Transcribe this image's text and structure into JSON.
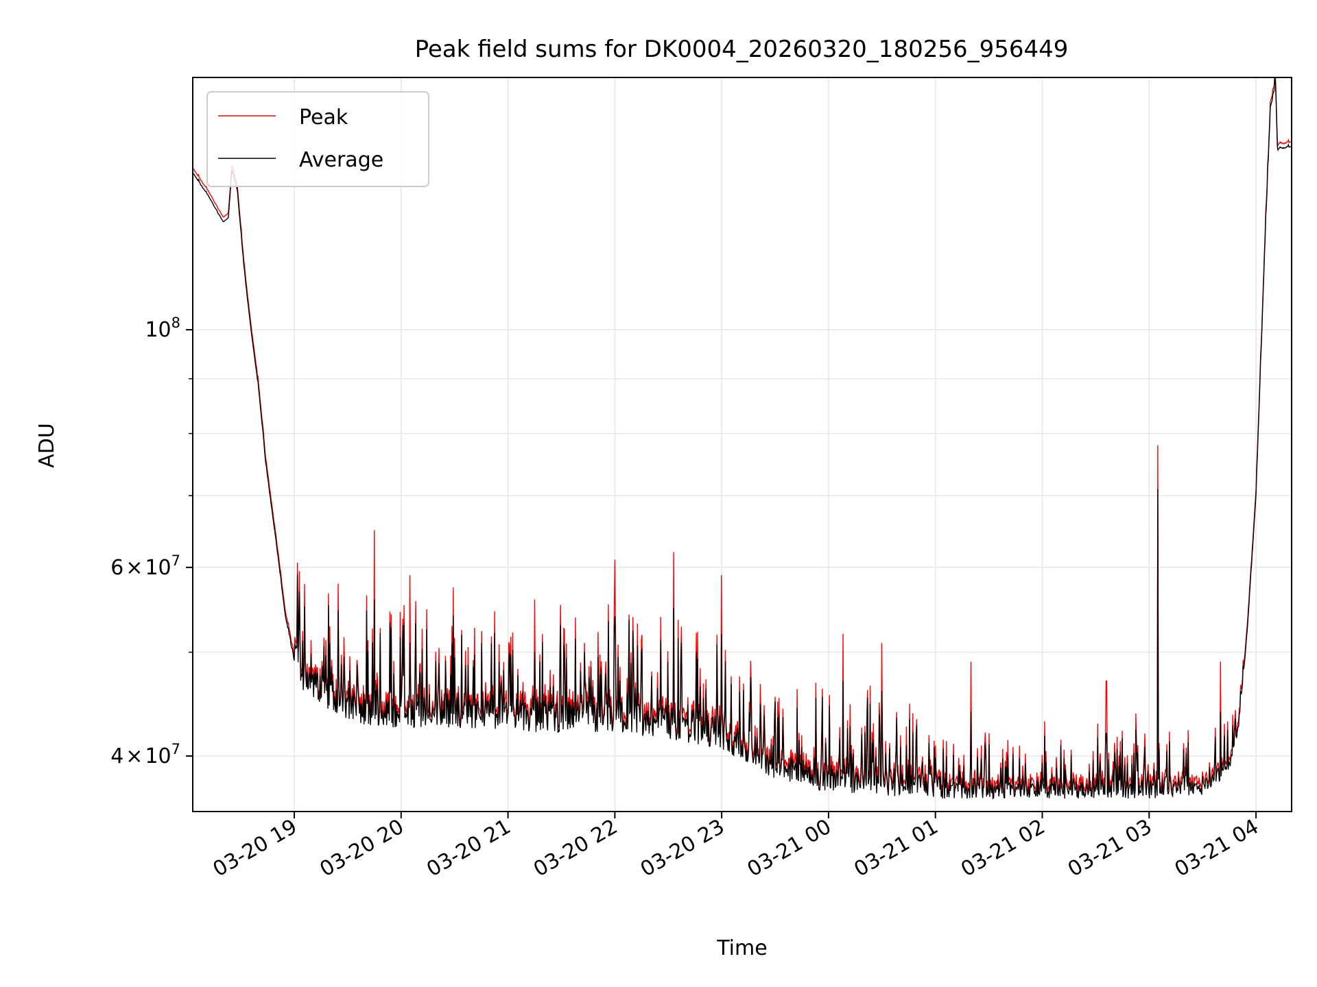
{
  "chart_data": {
    "type": "line",
    "title": "Peak field sums for DK0004_20260320_180256_956449",
    "xlabel": "Time",
    "ylabel": "ADU",
    "y_scale": "log",
    "x_range": [
      "03-20 18:03",
      "03-21 04:20"
    ],
    "ylim": [
      35500000,
      172000000
    ],
    "grid": true,
    "legend_position": "upper-left",
    "x_ticks": [
      "03-20 19",
      "03-20 20",
      "03-20 21",
      "03-20 22",
      "03-20 23",
      "03-21 00",
      "03-21 01",
      "03-21 02",
      "03-21 03",
      "03-21 04"
    ],
    "y_major_ticks": [
      {
        "value": 40000000,
        "mant": "4",
        "exp": "7"
      },
      {
        "value": 60000000,
        "mant": "6",
        "exp": "7"
      },
      {
        "value": 100000000,
        "mant": "",
        "exp": "8"
      }
    ],
    "y_minor_ticks": [
      50000000,
      70000000,
      80000000,
      90000000
    ],
    "series": [
      {
        "name": "Peak",
        "color": "#ff0000"
      },
      {
        "name": "Average",
        "color": "#000000"
      }
    ],
    "envelope": [
      [
        "03-20 18:03",
        140000000
      ],
      [
        "03-20 18:12",
        133000000
      ],
      [
        "03-20 18:20",
        126000000
      ],
      [
        "03-20 18:23",
        127000000
      ],
      [
        "03-20 18:25",
        141000000
      ],
      [
        "03-20 18:28",
        135000000
      ],
      [
        "03-20 18:32",
        113000000
      ],
      [
        "03-20 18:36",
        99000000
      ],
      [
        "03-20 18:40",
        88000000
      ],
      [
        "03-20 18:44",
        75000000
      ],
      [
        "03-20 18:50",
        63000000
      ],
      [
        "03-20 18:55",
        54000000
      ],
      [
        "03-20 19:00",
        49000000
      ],
      [
        "03-20 19:05",
        46000000
      ],
      [
        "03-20 19:20",
        44000000
      ],
      [
        "03-20 19:40",
        42500000
      ],
      [
        "03-20 20:30",
        42500000
      ],
      [
        "03-20 21:30",
        42000000
      ],
      [
        "03-20 22:30",
        41500000
      ],
      [
        "03-20 23:00",
        40500000
      ],
      [
        "03-20 23:30",
        38000000
      ],
      [
        "03-21 00:00",
        37000000
      ],
      [
        "03-21 01:00",
        36500000
      ],
      [
        "03-21 02:00",
        36500000
      ],
      [
        "03-21 03:00",
        36500000
      ],
      [
        "03-21 03:30",
        36800000
      ],
      [
        "03-21 03:45",
        38500000
      ],
      [
        "03-21 03:50",
        42000000
      ],
      [
        "03-21 03:55",
        52000000
      ],
      [
        "03-21 04:00",
        70000000
      ],
      [
        "03-21 04:05",
        120000000
      ],
      [
        "03-21 04:08",
        160000000
      ],
      [
        "03-21 04:11",
        170000000
      ],
      [
        "03-21 04:12",
        147000000
      ],
      [
        "03-21 04:20",
        148000000
      ]
    ],
    "spikes": [
      [
        "03-20 19:45",
        65000000,
        56000000
      ],
      [
        "03-20 20:05",
        59000000,
        51000000
      ],
      [
        "03-20 21:15",
        56000000,
        50000000
      ],
      [
        "03-20 22:00",
        61000000,
        54000000
      ],
      [
        "03-20 22:33",
        62000000,
        55000000
      ],
      [
        "03-20 23:00",
        59000000,
        52000000
      ],
      [
        "03-21 00:08",
        52000000,
        47000000
      ],
      [
        "03-21 00:30",
        51000000,
        46000000
      ],
      [
        "03-21 01:20",
        49000000,
        44000000
      ],
      [
        "03-21 02:36",
        47000000,
        42000000
      ],
      [
        "03-21 03:05",
        78000000,
        71000000
      ],
      [
        "03-21 03:40",
        49000000,
        44000000
      ]
    ]
  }
}
